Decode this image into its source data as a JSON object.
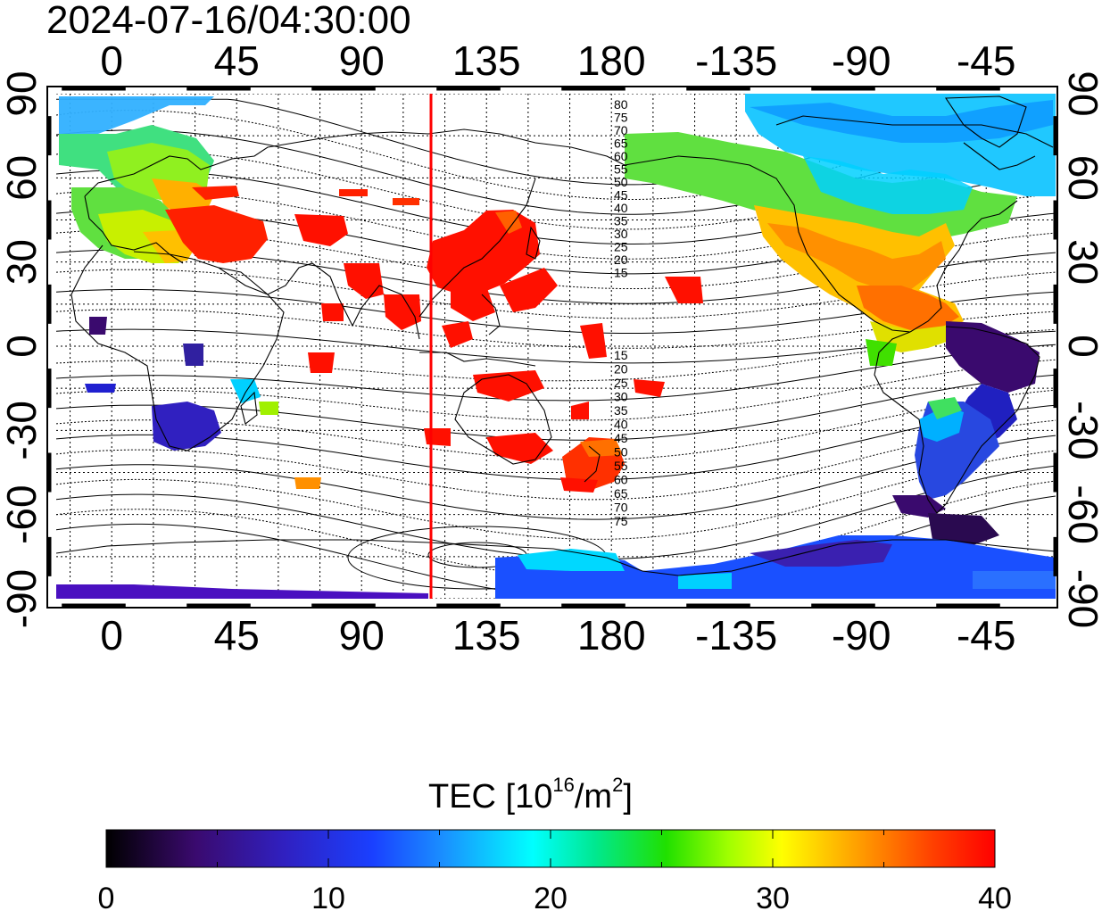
{
  "title": "2024-07-16/04:30:00",
  "map": {
    "x_tick_labels": [
      "0",
      "45",
      "90",
      "135",
      "180",
      "-135",
      "-90",
      "-45"
    ],
    "y_tick_labels": [
      "90",
      "60",
      "30",
      "0",
      "-30",
      "-60",
      "-90"
    ],
    "contour_labels_north": [
      "80",
      "75",
      "70",
      "65",
      "60",
      "55",
      "50",
      "45",
      "40",
      "35",
      "30",
      "25",
      "20",
      "15"
    ],
    "contour_labels_south": [
      "15",
      "20",
      "25",
      "30",
      "35",
      "40",
      "45",
      "50",
      "55",
      "60",
      "65",
      "70",
      "75"
    ],
    "terminator_color": "#ff0000"
  },
  "colorbar": {
    "title_prefix": "TEC  [10",
    "title_sup1": "16",
    "title_mid": "/m",
    "title_sup2": "2",
    "title_suffix": "]",
    "tick_labels": [
      "0",
      "10",
      "20",
      "30",
      "40"
    ],
    "colors": [
      "#000000",
      "#3a0a6e",
      "#2b2bd4",
      "#1a6aff",
      "#00d8ff",
      "#00e090",
      "#20e000",
      "#a0ff00",
      "#ffff00",
      "#ff9a00",
      "#ff3000",
      "#ff0000"
    ]
  }
}
